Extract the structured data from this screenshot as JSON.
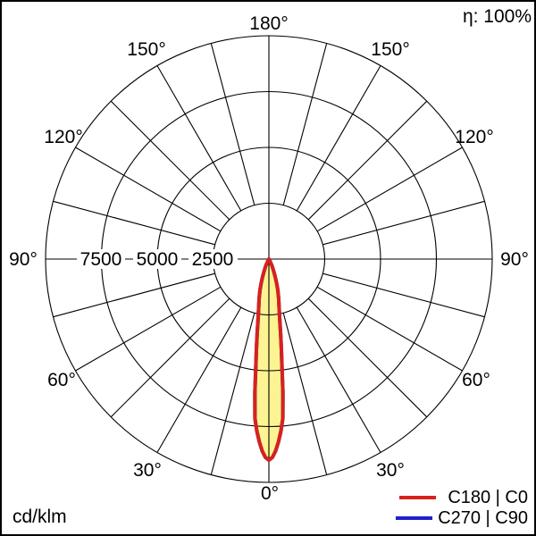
{
  "frame": {
    "background": "#ffffff",
    "border_color": "#000000"
  },
  "header": {
    "efficiency_label": "η: 100%"
  },
  "footer": {
    "unit_label": "cd/klm"
  },
  "legend": {
    "items": [
      {
        "label": "C180 | C0",
        "color": "#d7221c"
      },
      {
        "label": "C270 | C90",
        "color": "#2121cd"
      }
    ]
  },
  "polar": {
    "angle_ticks": [
      "0°",
      "30°",
      "60°",
      "90°",
      "120°",
      "150°",
      "180°"
    ],
    "radial_labels": [
      "7500",
      "5000",
      "2500"
    ]
  },
  "chart_data": {
    "type": "line",
    "polar": true,
    "title": "",
    "unit": "cd/klm",
    "efficiency_label": "η: 100%",
    "radial_axis": {
      "max": 10000,
      "ticks": [
        2500,
        5000,
        7500,
        10000
      ],
      "labeled_ticks": [
        7500,
        5000,
        2500
      ]
    },
    "angular_axis": {
      "label_step_deg": 30,
      "spoke_step_deg": 15,
      "labels": [
        "0°",
        "30°",
        "60°",
        "90°",
        "120°",
        "150°",
        "180°"
      ],
      "zero_direction": "down"
    },
    "beam_fill": "#fcf392",
    "legend_position": "bottom-right",
    "series": [
      {
        "name": "C180 | C0",
        "color": "#d7221c",
        "symmetric": true,
        "gamma_deg": [
          0,
          1,
          2,
          3,
          4,
          5,
          6,
          7,
          8,
          9,
          10,
          12,
          14,
          16,
          18,
          20,
          22,
          25,
          28,
          30
        ],
        "values": [
          9000,
          8880,
          8600,
          8200,
          7720,
          7170,
          6000,
          4800,
          4000,
          3350,
          2800,
          2200,
          1800,
          1450,
          1100,
          800,
          560,
          320,
          90,
          0
        ]
      },
      {
        "name": "C270 | C90",
        "color": "#2121cd",
        "symmetric": true,
        "gamma_deg": [
          0,
          1,
          2,
          3,
          4,
          5,
          6,
          7,
          8,
          9,
          10,
          12,
          14,
          16,
          18,
          20,
          22,
          25,
          28,
          30
        ],
        "values": [
          9000,
          8880,
          8600,
          8200,
          7720,
          7170,
          6000,
          4800,
          4000,
          3350,
          2800,
          2200,
          1800,
          1450,
          1100,
          800,
          560,
          320,
          90,
          0
        ]
      }
    ]
  }
}
